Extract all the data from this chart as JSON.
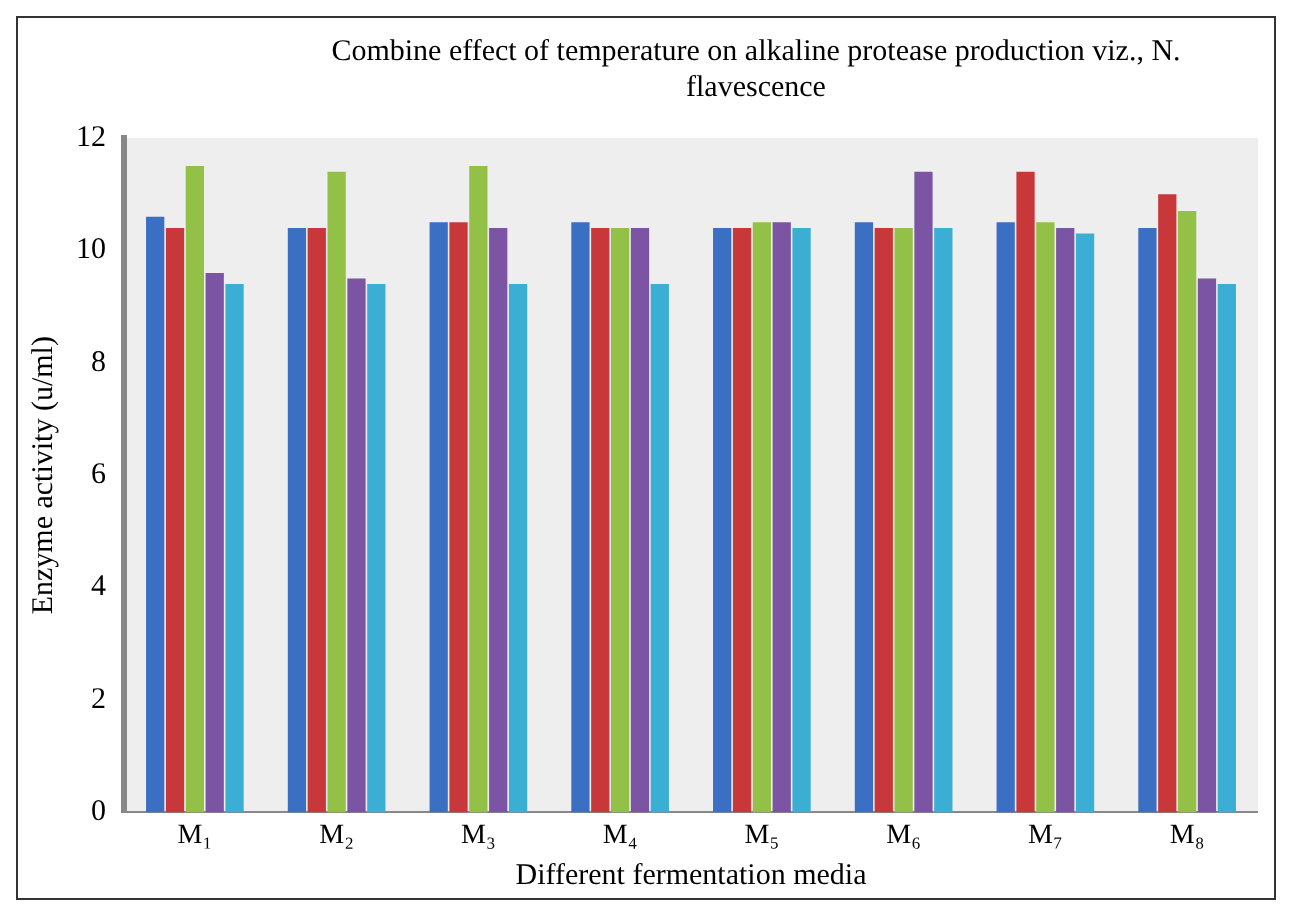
{
  "chart_data": {
    "type": "bar",
    "title": "Combine effect of temperature on alkaline protease production viz., N. flavescence",
    "xlabel": "Different fermentation media",
    "ylabel": "Enzyme activity (u/ml)",
    "categories": [
      "M₁",
      "M₂",
      "M₃",
      "M₄",
      "M₅",
      "M₆",
      "M₇",
      "M₈"
    ],
    "series": [
      {
        "color": "#3a6fc4",
        "values": [
          10.6,
          10.4,
          10.5,
          10.5,
          10.4,
          10.5,
          10.5,
          10.4
        ]
      },
      {
        "color": "#c8383a",
        "values": [
          10.4,
          10.4,
          10.5,
          10.4,
          10.4,
          10.4,
          11.4,
          11.0
        ]
      },
      {
        "color": "#93c047",
        "values": [
          11.5,
          11.4,
          11.5,
          10.4,
          10.5,
          10.4,
          10.5,
          10.7
        ]
      },
      {
        "color": "#7b55a3",
        "values": [
          9.6,
          9.5,
          10.4,
          10.4,
          10.5,
          11.4,
          10.4,
          9.5
        ]
      },
      {
        "color": "#3aaed3",
        "values": [
          9.4,
          9.4,
          9.4,
          9.4,
          10.4,
          10.4,
          10.3,
          9.4
        ]
      }
    ],
    "ylim": [
      0,
      12
    ],
    "yticks": [
      0,
      2,
      4,
      6,
      8,
      10,
      12
    ],
    "grid": false,
    "legend": false
  }
}
